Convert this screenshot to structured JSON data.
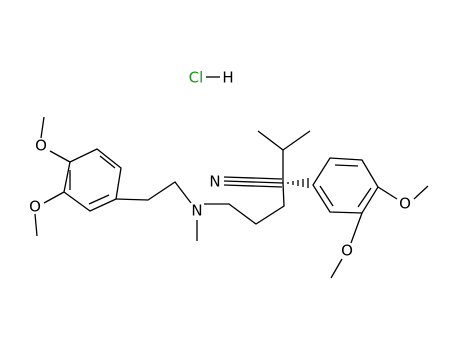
{
  "salt": {
    "atoms": [
      "Cl",
      "H"
    ]
  },
  "molecule": {
    "atoms": [
      "N",
      "N",
      "O",
      "O",
      "O",
      "O"
    ]
  }
}
